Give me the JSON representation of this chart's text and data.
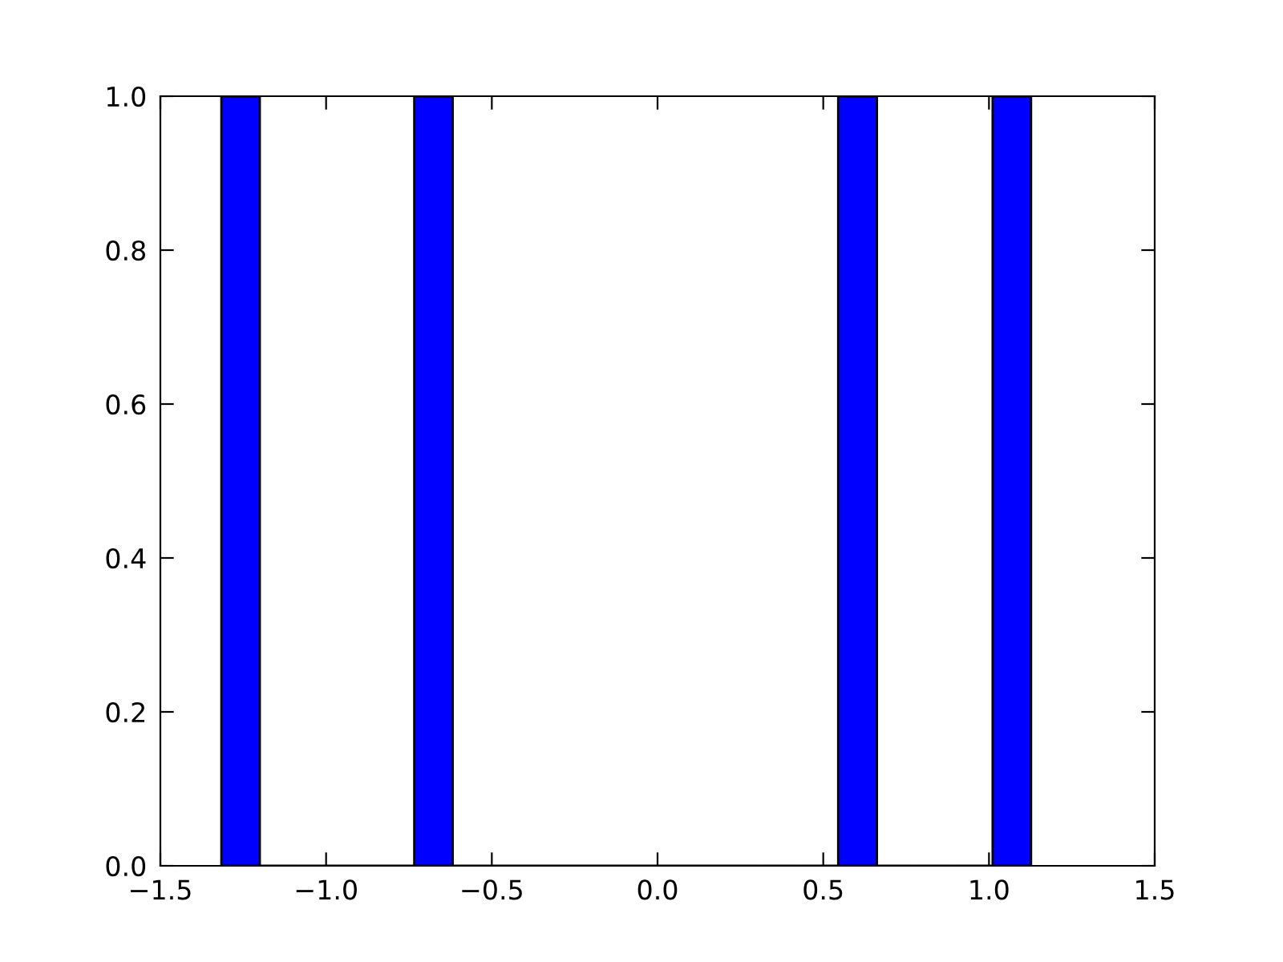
{
  "chart_data": {
    "type": "histogram",
    "bins": [
      -1.316,
      -1.2,
      -1.083,
      -0.967,
      -0.851,
      -0.734,
      -0.618,
      -0.502,
      -0.385,
      -0.269,
      -0.153,
      -0.036,
      0.08,
      0.196,
      0.313,
      0.429,
      0.545,
      0.662,
      0.778,
      0.894,
      1.011,
      1.127
    ],
    "values": [
      1,
      0,
      0,
      0,
      0,
      1,
      0,
      0,
      0,
      0,
      0,
      0,
      0,
      0,
      0,
      0,
      1,
      0,
      0,
      0,
      1
    ],
    "color": "#0000ff",
    "xlim": [
      -1.5,
      1.5
    ],
    "xticks": [
      {
        "value": -1.5,
        "label": "−1.5"
      },
      {
        "value": -1.0,
        "label": "−1.0"
      },
      {
        "value": -0.5,
        "label": "−0.5"
      },
      {
        "value": 0.0,
        "label": "0.0"
      },
      {
        "value": 0.5,
        "label": "0.5"
      },
      {
        "value": 1.0,
        "label": "1.0"
      },
      {
        "value": 1.5,
        "label": "1.5"
      }
    ],
    "ylim": [
      0,
      1
    ],
    "yticks": [
      {
        "value": 0.0,
        "label": "0.0"
      },
      {
        "value": 0.2,
        "label": "0.2"
      },
      {
        "value": 0.4,
        "label": "0.4"
      },
      {
        "value": 0.6,
        "label": "0.6"
      },
      {
        "value": 0.8,
        "label": "0.8"
      },
      {
        "value": 1.0,
        "label": "1.0"
      }
    ],
    "grid": false
  }
}
